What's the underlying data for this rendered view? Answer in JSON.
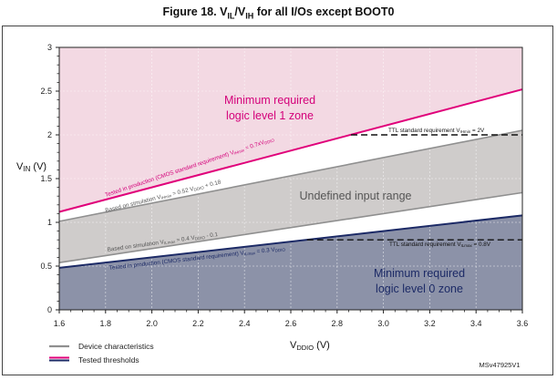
{
  "figure": {
    "title_prefix": "Figure 18. V",
    "sub_il": "IL",
    "slash_v": "/V",
    "sub_ih": "IH",
    "title_suffix": " for all I/Os except BOOT0"
  },
  "chart_data": {
    "type": "line",
    "x": {
      "label": "V",
      "label_sub": "DDIO",
      "label_unit": " (V)",
      "min": 1.6,
      "max": 3.6,
      "ticks": [
        "1.6",
        "1.8",
        "2.0",
        "2.2",
        "2.4",
        "2.6",
        "2.8",
        "3.0",
        "3.2",
        "3.4",
        "3.6"
      ]
    },
    "y": {
      "label": "V",
      "label_sub": "IN",
      "label_unit": " (V)",
      "min": 0,
      "max": 3,
      "ticks": [
        "0",
        "0.5",
        "1",
        "1.5",
        "2",
        "2.5",
        "3"
      ]
    },
    "grid": true,
    "series": [
      {
        "name": "Tested in production (CMOS standard requirement) VIHmin = 0.7xVDDIO",
        "kind": "tested",
        "color": "#e0007a",
        "x": [
          1.6,
          3.6
        ],
        "y": [
          1.12,
          2.52
        ]
      },
      {
        "name": "Based on simulation VIHmin = 0.52 VDDIO + 0.18",
        "kind": "device",
        "color": "#8f8f8f",
        "x": [
          1.6,
          3.6
        ],
        "y": [
          1.012,
          2.052
        ]
      },
      {
        "name": "Based on simulation VILmax = 0.4 VDDIO - 0.1",
        "kind": "device",
        "color": "#8f8f8f",
        "x": [
          1.6,
          3.6
        ],
        "y": [
          0.54,
          1.34
        ]
      },
      {
        "name": "Tested in production (CMOS standard requirement) VILmax = 0.3 VDDIO",
        "kind": "tested",
        "color": "#1c2a66",
        "x": [
          1.6,
          3.6
        ],
        "y": [
          0.48,
          1.08
        ]
      },
      {
        "name": "TTL standard requirement VIHmin = 2V",
        "kind": "ttl",
        "color": "#111111",
        "x": [
          2.86,
          3.6
        ],
        "y": [
          2.0,
          2.0
        ]
      },
      {
        "name": "TTL standard requirement VILmax = 0.8V",
        "kind": "ttl",
        "color": "#111111",
        "x": [
          2.67,
          3.6
        ],
        "y": [
          0.8,
          0.8
        ]
      }
    ],
    "regions": [
      {
        "name": "Minimum required logic level 1 zone",
        "color": "#f3d9e3"
      },
      {
        "name": "Undefined input range",
        "color": "#cfcccb"
      },
      {
        "name": "Minimum required logic level 0 zone",
        "color": "#8c92a8"
      }
    ],
    "annotations": {
      "zone1_line1": "Minimum required",
      "zone1_line2": "logic level 1 zone",
      "undefined": "Undefined input range",
      "zone0_line1": "Minimum required",
      "zone0_line2": "logic level 0 zone",
      "vih_tested_a": "Tested in production (CMOS standard requirement) V",
      "vih_tested_sub": "IHmin",
      "vih_tested_b": " = 0.7xV",
      "vih_tested_sub2": "DDIO",
      "vih_sim_a": "Based on simulation V",
      "vih_sim_sub": "IHmin",
      "vih_sim_b": " = 0.52 V",
      "vih_sim_sub2": "DDIO",
      "vih_sim_c": " + 0.18",
      "vil_sim_a": "Based on simulation V",
      "vil_sim_sub": "ILmax",
      "vil_sim_b": " = 0.4 V",
      "vil_sim_sub2": "DDIO",
      "vil_sim_c": " - 0.1",
      "vil_tested_a": "Tested in production (CMOS standard requirement) V",
      "vil_tested_sub": "ILmax",
      "vil_tested_b": " = 0.3 V",
      "vil_tested_sub2": "DDIO",
      "ttl_high_a": "TTL standard requirement V",
      "ttl_high_sub": "IHmin",
      "ttl_high_b": " = 2V",
      "ttl_low_a": "TTL standard requirement V",
      "ttl_low_sub": "ILmax",
      "ttl_low_b": " = 0.8V"
    },
    "legend": [
      {
        "label": "Device characteristics",
        "kind": "device"
      },
      {
        "label": "Tested thresholds",
        "kind": "tested"
      }
    ],
    "ref_code": "MSv47925V1"
  }
}
